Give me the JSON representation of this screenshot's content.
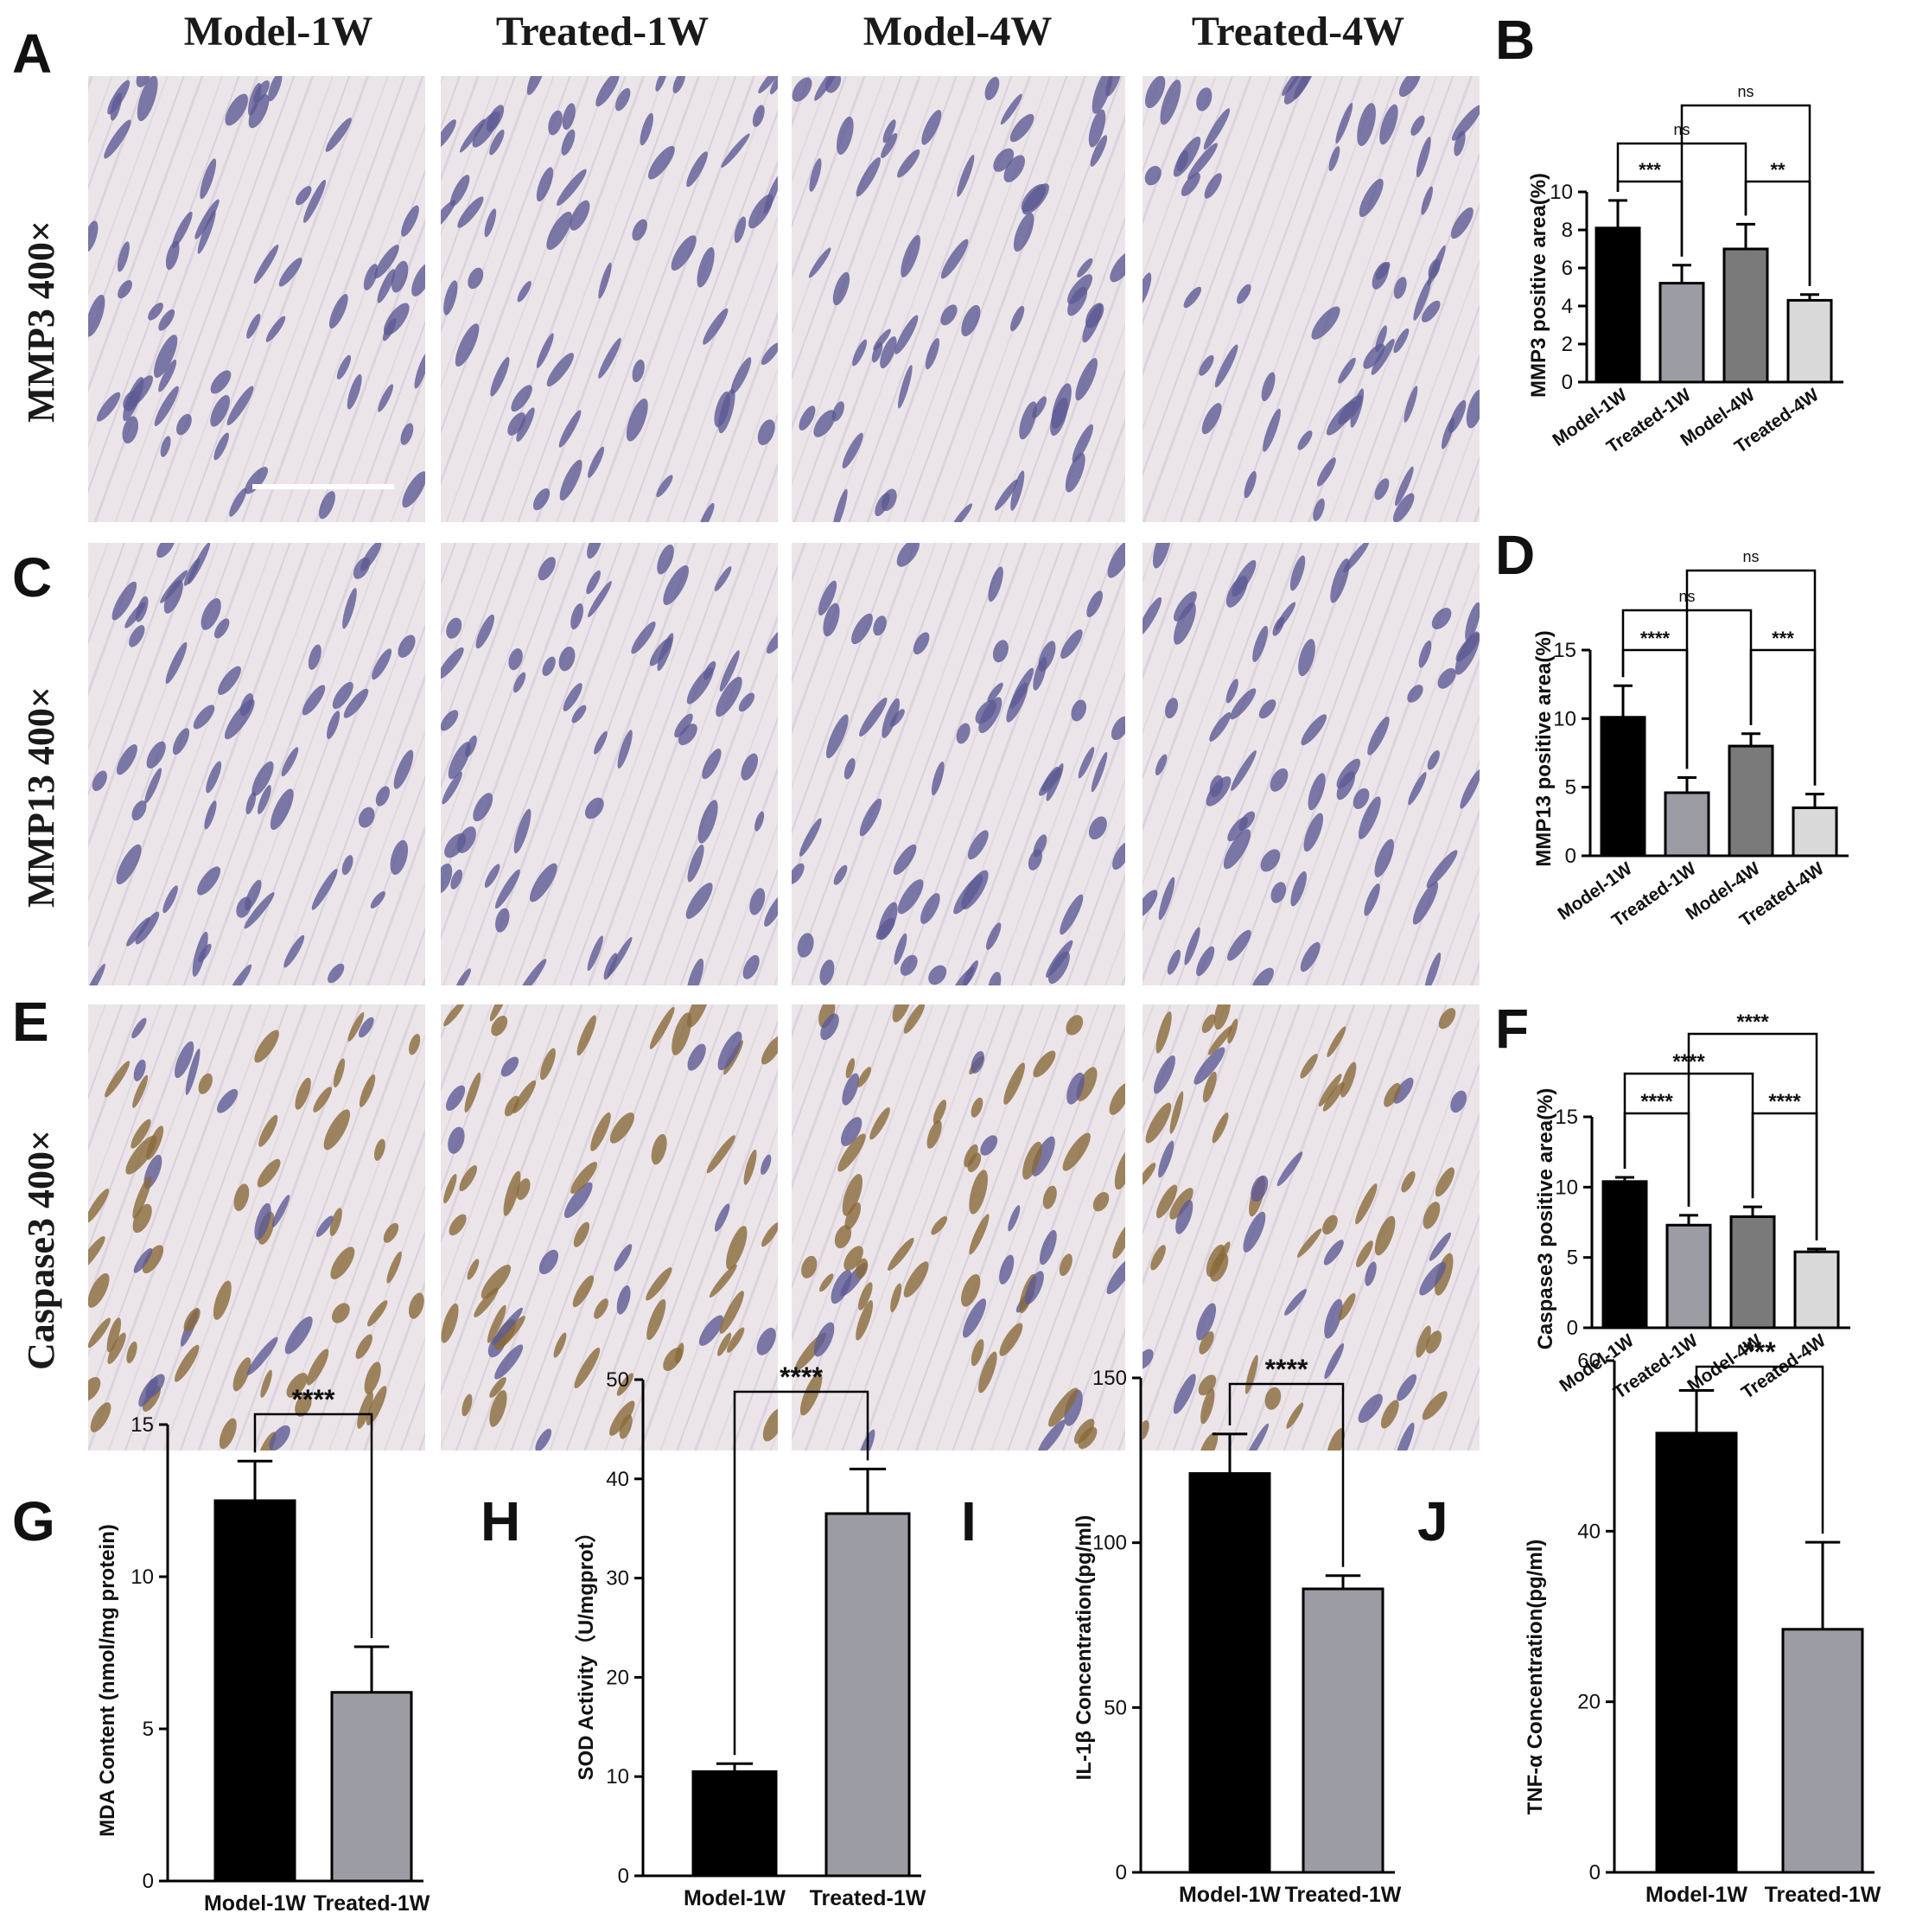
{
  "columns": [
    "Model-1W",
    "Treated-1W",
    "Model-4W",
    "Treated-4W"
  ],
  "rows": [
    "MMP3 400×",
    "MMP13 400×",
    "Caspase3 400×"
  ],
  "panel_letters": {
    "A": "A",
    "B": "B",
    "C": "C",
    "D": "D",
    "E": "E",
    "F": "F",
    "G": "G",
    "H": "H",
    "I": "I",
    "J": "J"
  },
  "colors": {
    "black": "#000000",
    "mid_gray": "#9c9ca4",
    "dark_gray": "#7a7a7a",
    "light_gray": "#d9d9d9",
    "tissue": "#e8e2e6",
    "fiber": "#d8d0d8",
    "nucleus": "#5e5a94",
    "brown": "#8a6a3a"
  },
  "chart_data": [
    {
      "id": "B",
      "type": "bar",
      "categories": [
        "Model-1W",
        "Treated-1W",
        "Model-4W",
        "Treated-4W"
      ],
      "values": [
        8.1,
        5.2,
        7.0,
        4.3
      ],
      "errors": [
        1.45,
        0.95,
        1.3,
        0.3
      ],
      "ylabel": "MMP3 positive area(%)",
      "ylim": [
        0,
        10
      ],
      "yticks": [
        0,
        2,
        4,
        6,
        8,
        10
      ],
      "fills": [
        "#000000",
        "#9c9ca4",
        "#7a7a7a",
        "#d9d9d9"
      ],
      "significance": [
        {
          "a": 0,
          "b": 1,
          "label": "***"
        },
        {
          "a": 2,
          "b": 3,
          "label": "**"
        },
        {
          "a": 0,
          "b": 2,
          "label": "ns"
        },
        {
          "a": 1,
          "b": 3,
          "label": "ns"
        }
      ]
    },
    {
      "id": "D",
      "type": "bar",
      "categories": [
        "Model-1W",
        "Treated-1W",
        "Model-4W",
        "Treated-4W"
      ],
      "values": [
        10.1,
        4.6,
        8.0,
        3.5
      ],
      "errors": [
        2.3,
        1.1,
        0.9,
        1.0
      ],
      "ylabel": "MMP13 positive area(%)",
      "ylim": [
        0,
        15
      ],
      "yticks": [
        0,
        5,
        10,
        15
      ],
      "fills": [
        "#000000",
        "#9c9ca4",
        "#7a7a7a",
        "#d9d9d9"
      ],
      "significance": [
        {
          "a": 0,
          "b": 1,
          "label": "****"
        },
        {
          "a": 2,
          "b": 3,
          "label": "***"
        },
        {
          "a": 0,
          "b": 2,
          "label": "ns"
        },
        {
          "a": 1,
          "b": 3,
          "label": "ns"
        }
      ]
    },
    {
      "id": "F",
      "type": "bar",
      "categories": [
        "Model-1W",
        "Treated-1W",
        "Model-4W",
        "Treated-4W"
      ],
      "values": [
        10.4,
        7.3,
        7.9,
        5.4
      ],
      "errors": [
        0.3,
        0.7,
        0.7,
        0.2
      ],
      "ylabel": "Caspase3 positive area(%)",
      "ylim": [
        0,
        15
      ],
      "yticks": [
        0,
        5,
        10,
        15
      ],
      "fills": [
        "#000000",
        "#9c9ca4",
        "#7a7a7a",
        "#d9d9d9"
      ],
      "significance": [
        {
          "a": 0,
          "b": 1,
          "label": "****"
        },
        {
          "a": 2,
          "b": 3,
          "label": "****"
        },
        {
          "a": 0,
          "b": 2,
          "label": "****"
        },
        {
          "a": 1,
          "b": 3,
          "label": "****"
        }
      ]
    },
    {
      "id": "G",
      "type": "bar",
      "categories": [
        "Model-1W",
        "Treated-1W"
      ],
      "values": [
        12.5,
        6.2
      ],
      "errors": [
        1.3,
        1.5
      ],
      "ylabel": "MDA Content (nmol/mg protein)",
      "ylim": [
        0,
        15
      ],
      "yticks": [
        0,
        5,
        10,
        15
      ],
      "fills": [
        "#000000",
        "#9c9ca4"
      ],
      "significance": [
        {
          "a": 0,
          "b": 1,
          "label": "****"
        }
      ]
    },
    {
      "id": "H",
      "type": "bar",
      "categories": [
        "Model-1W",
        "Treated-1W"
      ],
      "values": [
        10.5,
        36.5
      ],
      "errors": [
        0.8,
        4.5
      ],
      "ylabel": "SOD Activity（U/mgprot）",
      "ylim": [
        0,
        50
      ],
      "yticks": [
        0,
        10,
        20,
        30,
        40,
        50
      ],
      "fills": [
        "#000000",
        "#9c9ca4"
      ],
      "significance": [
        {
          "a": 0,
          "b": 1,
          "label": "****"
        }
      ]
    },
    {
      "id": "I",
      "type": "bar",
      "categories": [
        "Model-1W",
        "Treated-1W"
      ],
      "values": [
        121,
        86
      ],
      "errors": [
        12,
        4
      ],
      "ylabel": "IL-1β Concentration(pg/ml)",
      "ylim": [
        0,
        150
      ],
      "yticks": [
        0,
        50,
        100,
        150
      ],
      "fills": [
        "#000000",
        "#9c9ca4"
      ],
      "significance": [
        {
          "a": 0,
          "b": 1,
          "label": "****"
        }
      ]
    },
    {
      "id": "J",
      "type": "bar",
      "categories": [
        "Model-1W",
        "Treated-1W"
      ],
      "values": [
        51.5,
        28.5
      ],
      "errors": [
        5,
        10.2
      ],
      "ylabel": "TNF-α Concentration(pg/ml)",
      "ylim": [
        0,
        60
      ],
      "yticks": [
        0,
        20,
        40,
        60
      ],
      "fills": [
        "#000000",
        "#9c9ca4"
      ],
      "significance": [
        {
          "a": 0,
          "b": 1,
          "label": "***"
        }
      ]
    }
  ]
}
